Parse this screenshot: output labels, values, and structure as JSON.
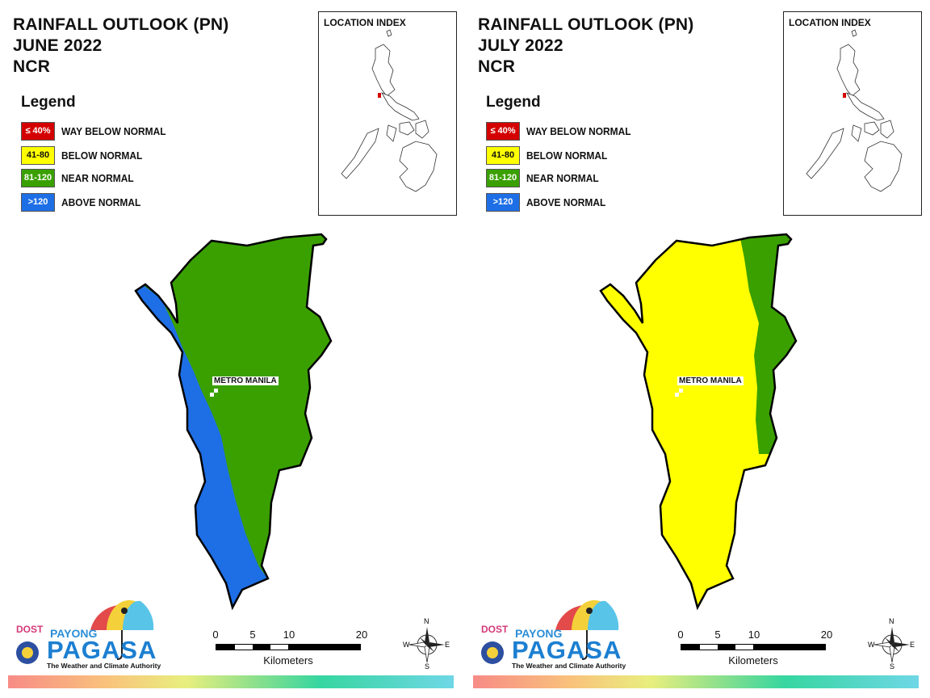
{
  "panels": [
    {
      "title_line1": "RAINFALL OUTLOOK (PN)",
      "title_line2": "JUNE 2022",
      "title_line3": "NCR",
      "place_label": "METRO MANILA",
      "map_classes": [
        "ABOVE NORMAL",
        "NEAR NORMAL"
      ]
    },
    {
      "title_line1": "RAINFALL OUTLOOK (PN)",
      "title_line2": "JULY 2022",
      "title_line3": "NCR",
      "place_label": "METRO MANILA",
      "map_classes": [
        "BELOW NORMAL",
        "NEAR NORMAL"
      ]
    }
  ],
  "legend": {
    "title": "Legend",
    "items": [
      {
        "range": "≤ 40%",
        "label": "WAY BELOW NORMAL",
        "color": "#d40000",
        "text_color": "#ffffff"
      },
      {
        "range": "41-80",
        "label": "BELOW NORMAL",
        "color": "#ffff00",
        "text_color": "#111111"
      },
      {
        "range": "81-120",
        "label": "NEAR NORMAL",
        "color": "#3aa000",
        "text_color": "#ffffff"
      },
      {
        "range": ">120",
        "label": "ABOVE NORMAL",
        "color": "#1e6fe6",
        "text_color": "#ffffff"
      }
    ]
  },
  "location_index": {
    "title": "LOCATION INDEX"
  },
  "scale": {
    "ticks": [
      "0",
      "5",
      "10",
      "20"
    ],
    "unit": "Kilometers"
  },
  "compass": {
    "n": "N",
    "s": "S",
    "e": "E",
    "w": "W"
  },
  "logo": {
    "dost": "DOST",
    "payong": "PAYONG",
    "pagasa": "PAGASA",
    "tagline": "The Weather and Climate Authority"
  },
  "colors": {
    "above_normal": "#1e6fe6",
    "near_normal": "#3aa000",
    "below_normal": "#ffff00",
    "way_below_normal": "#d40000"
  }
}
